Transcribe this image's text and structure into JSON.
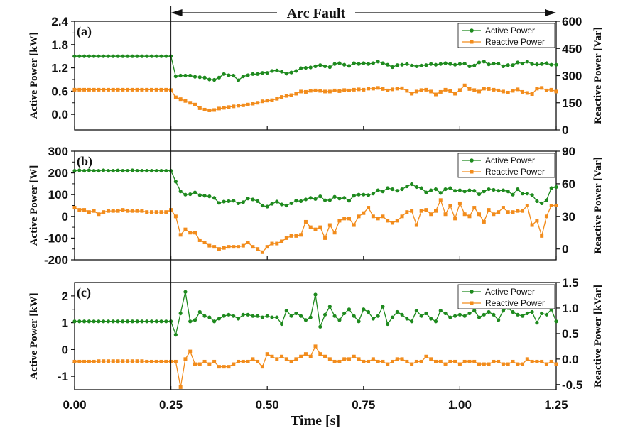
{
  "colors": {
    "active": "#1e8a1e",
    "reactive": "#f28c1c",
    "axis": "#111111"
  },
  "annotation": {
    "text": "Arc Fault",
    "fault_time": 0.25
  },
  "xlabel": "Time [s]",
  "x_ticks": [
    "0.00",
    "0.25",
    "0.50",
    "0.75",
    "1.00",
    "1.25"
  ],
  "chart_data": [
    {
      "type": "line",
      "panel_label": "(a)",
      "ylabel_left": "Active Power [kW]",
      "ylabel_right": "Reactive Power [Var]",
      "ylim_left": [
        -0.4,
        2.4
      ],
      "ylim_right": [
        0,
        600
      ],
      "yticks_left": [
        "2.4",
        "1.8",
        "1.2",
        "0.6",
        "0.0"
      ],
      "yticks_right": [
        "600",
        "450",
        "300",
        "150",
        "0"
      ],
      "xlim": [
        0,
        1.25
      ],
      "legend": [
        "Active Power",
        "Reactive Power"
      ],
      "x": [
        0.0,
        0.0125,
        0.025,
        0.0375,
        0.05,
        0.0625,
        0.075,
        0.0875,
        0.1,
        0.1125,
        0.125,
        0.1375,
        0.15,
        0.1625,
        0.175,
        0.1875,
        0.2,
        0.2125,
        0.225,
        0.2375,
        0.25,
        0.2625,
        0.275,
        0.2875,
        0.3,
        0.3125,
        0.325,
        0.3375,
        0.35,
        0.3625,
        0.375,
        0.3875,
        0.4,
        0.4125,
        0.425,
        0.4375,
        0.45,
        0.4625,
        0.475,
        0.4875,
        0.5,
        0.5125,
        0.525,
        0.5375,
        0.55,
        0.5625,
        0.575,
        0.5875,
        0.6,
        0.6125,
        0.625,
        0.6375,
        0.65,
        0.6625,
        0.675,
        0.6875,
        0.7,
        0.7125,
        0.725,
        0.7375,
        0.75,
        0.7625,
        0.775,
        0.7875,
        0.8,
        0.8125,
        0.825,
        0.8375,
        0.85,
        0.8625,
        0.875,
        0.8875,
        0.9,
        0.9125,
        0.925,
        0.9375,
        0.95,
        0.9625,
        0.975,
        0.9875,
        1.0,
        1.0125,
        1.025,
        1.0375,
        1.05,
        1.0625,
        1.075,
        1.0875,
        1.1,
        1.1125,
        1.125,
        1.1375,
        1.15,
        1.1625,
        1.175,
        1.1875,
        1.2,
        1.2125,
        1.225,
        1.2375,
        1.25
      ],
      "series": [
        {
          "name": "Active Power",
          "axis": "left",
          "marker": "circle",
          "values": [
            1.5,
            1.5,
            1.5,
            1.5,
            1.5,
            1.5,
            1.5,
            1.5,
            1.5,
            1.5,
            1.5,
            1.5,
            1.5,
            1.5,
            1.5,
            1.5,
            1.5,
            1.5,
            1.5,
            1.5,
            1.5,
            0.98,
            1.0,
            1.0,
            1.0,
            0.97,
            0.96,
            0.95,
            0.9,
            0.89,
            0.95,
            1.04,
            1.01,
            1.0,
            0.88,
            0.98,
            1.01,
            1.04,
            1.04,
            1.07,
            1.07,
            1.12,
            1.13,
            1.1,
            1.05,
            1.08,
            1.12,
            1.19,
            1.2,
            1.21,
            1.24,
            1.27,
            1.24,
            1.22,
            1.3,
            1.32,
            1.28,
            1.25,
            1.32,
            1.3,
            1.32,
            1.3,
            1.32,
            1.36,
            1.32,
            1.28,
            1.22,
            1.27,
            1.28,
            1.3,
            1.26,
            1.24,
            1.26,
            1.27,
            1.3,
            1.28,
            1.3,
            1.32,
            1.3,
            1.28,
            1.3,
            1.31,
            1.24,
            1.26,
            1.34,
            1.36,
            1.29,
            1.31,
            1.31,
            1.24,
            1.27,
            1.27,
            1.34,
            1.31,
            1.36,
            1.3,
            1.29,
            1.3,
            1.32,
            1.28,
            1.28
          ]
        },
        {
          "name": "Reactive Power",
          "axis": "right",
          "marker": "square",
          "values": [
            222,
            222,
            222,
            222,
            222,
            222,
            222,
            222,
            222,
            222,
            222,
            222,
            222,
            222,
            222,
            222,
            222,
            222,
            222,
            222,
            220,
            180,
            170,
            160,
            150,
            140,
            120,
            112,
            108,
            110,
            118,
            122,
            126,
            130,
            134,
            136,
            140,
            145,
            150,
            158,
            162,
            164,
            172,
            182,
            188,
            192,
            200,
            212,
            210,
            216,
            218,
            216,
            212,
            212,
            218,
            214,
            220,
            218,
            222,
            224,
            222,
            228,
            228,
            232,
            226,
            218,
            224,
            228,
            230,
            216,
            200,
            212,
            220,
            222,
            212,
            196,
            210,
            222,
            214,
            200,
            220,
            246,
            226,
            220,
            212,
            228,
            226,
            222,
            218,
            212,
            206,
            216,
            224,
            210,
            204,
            198,
            228,
            232,
            218,
            222,
            212
          ]
        }
      ]
    },
    {
      "type": "line",
      "panel_label": "(b)",
      "ylabel_left": "Active Power [W]",
      "ylabel_right": "Reactive Power [Var]",
      "ylim_left": [
        -200,
        300
      ],
      "ylim_right": [
        -10,
        90
      ],
      "yticks_left": [
        "300",
        "200",
        "100",
        "0",
        "-100",
        "-200"
      ],
      "yticks_right": [
        "90",
        "60",
        "30",
        "0"
      ],
      "xlim": [
        0,
        1.25
      ],
      "legend": [
        "Active Power",
        "Reactive Power"
      ],
      "x": [
        0.0,
        0.0125,
        0.025,
        0.0375,
        0.05,
        0.0625,
        0.075,
        0.0875,
        0.1,
        0.1125,
        0.125,
        0.1375,
        0.15,
        0.1625,
        0.175,
        0.1875,
        0.2,
        0.2125,
        0.225,
        0.2375,
        0.25,
        0.2625,
        0.275,
        0.2875,
        0.3,
        0.3125,
        0.325,
        0.3375,
        0.35,
        0.3625,
        0.375,
        0.3875,
        0.4,
        0.4125,
        0.425,
        0.4375,
        0.45,
        0.4625,
        0.475,
        0.4875,
        0.5,
        0.5125,
        0.525,
        0.5375,
        0.55,
        0.5625,
        0.575,
        0.5875,
        0.6,
        0.6125,
        0.625,
        0.6375,
        0.65,
        0.6625,
        0.675,
        0.6875,
        0.7,
        0.7125,
        0.725,
        0.7375,
        0.75,
        0.7625,
        0.775,
        0.7875,
        0.8,
        0.8125,
        0.825,
        0.8375,
        0.85,
        0.8625,
        0.875,
        0.8875,
        0.9,
        0.9125,
        0.925,
        0.9375,
        0.95,
        0.9625,
        0.975,
        0.9875,
        1.0,
        1.0125,
        1.025,
        1.0375,
        1.05,
        1.0625,
        1.075,
        1.0875,
        1.1,
        1.1125,
        1.125,
        1.1375,
        1.15,
        1.1625,
        1.175,
        1.1875,
        1.2,
        1.2125,
        1.225,
        1.2375,
        1.25
      ],
      "series": [
        {
          "name": "Active Power",
          "axis": "left",
          "marker": "circle",
          "values": [
            210,
            212,
            210,
            212,
            210,
            210,
            212,
            210,
            210,
            211,
            210,
            210,
            212,
            210,
            210,
            210,
            210,
            210,
            210,
            210,
            210,
            160,
            115,
            100,
            102,
            110,
            98,
            95,
            92,
            85,
            62,
            68,
            70,
            72,
            60,
            65,
            82,
            78,
            70,
            50,
            45,
            58,
            68,
            55,
            50,
            60,
            72,
            70,
            78,
            85,
            80,
            92,
            74,
            75,
            90,
            82,
            85,
            72,
            95,
            100,
            100,
            98,
            105,
            120,
            115,
            130,
            125,
            118,
            125,
            138,
            148,
            135,
            130,
            110,
            120,
            125,
            108,
            125,
            130,
            118,
            120,
            115,
            120,
            118,
            102,
            115,
            125,
            122,
            118,
            120,
            115,
            100,
            125,
            105,
            105,
            98,
            70,
            60,
            75,
            130,
            135
          ]
        },
        {
          "name": "Reactive Power",
          "axis": "right",
          "marker": "square",
          "values": [
            38,
            36,
            36,
            34,
            35,
            32,
            34,
            35,
            35,
            35,
            36,
            35,
            35,
            35,
            35,
            34,
            34,
            34,
            34,
            34,
            36,
            30,
            13,
            18,
            15,
            15,
            8,
            6,
            3,
            2,
            0,
            1,
            2,
            2,
            2,
            3,
            6,
            2,
            0,
            -3,
            2,
            5,
            5,
            7,
            10,
            12,
            12,
            13,
            25,
            20,
            18,
            20,
            10,
            22,
            15,
            26,
            28,
            28,
            22,
            30,
            33,
            38,
            30,
            28,
            30,
            26,
            24,
            26,
            30,
            34,
            35,
            22,
            35,
            36,
            32,
            35,
            45,
            32,
            40,
            28,
            42,
            32,
            30,
            38,
            32,
            25,
            36,
            32,
            34,
            38,
            34,
            34,
            35,
            35,
            40,
            22,
            26,
            12,
            30,
            40,
            40
          ]
        }
      ]
    },
    {
      "type": "line",
      "panel_label": "(c)",
      "ylabel_left": "Active Power [kW]",
      "ylabel_right": "Reactive Power [kVar]",
      "ylim_left": [
        -1.5,
        2.5
      ],
      "ylim_right": [
        -0.6,
        1.5
      ],
      "yticks_left": [
        "2",
        "1",
        "0",
        "-1"
      ],
      "yticks_right": [
        "1.5",
        "1.0",
        "0.5",
        "0.0",
        "-0.5"
      ],
      "xlim": [
        0,
        1.25
      ],
      "legend": [
        "Active Power",
        "Reactive Power"
      ],
      "x": [
        0.0,
        0.0125,
        0.025,
        0.0375,
        0.05,
        0.0625,
        0.075,
        0.0875,
        0.1,
        0.1125,
        0.125,
        0.1375,
        0.15,
        0.1625,
        0.175,
        0.1875,
        0.2,
        0.2125,
        0.225,
        0.2375,
        0.25,
        0.2625,
        0.275,
        0.2875,
        0.3,
        0.3125,
        0.325,
        0.3375,
        0.35,
        0.3625,
        0.375,
        0.3875,
        0.4,
        0.4125,
        0.425,
        0.4375,
        0.45,
        0.4625,
        0.475,
        0.4875,
        0.5,
        0.5125,
        0.525,
        0.5375,
        0.55,
        0.5625,
        0.575,
        0.5875,
        0.6,
        0.6125,
        0.625,
        0.6375,
        0.65,
        0.6625,
        0.675,
        0.6875,
        0.7,
        0.7125,
        0.725,
        0.7375,
        0.75,
        0.7625,
        0.775,
        0.7875,
        0.8,
        0.8125,
        0.825,
        0.8375,
        0.85,
        0.8625,
        0.875,
        0.8875,
        0.9,
        0.9125,
        0.925,
        0.9375,
        0.95,
        0.9625,
        0.975,
        0.9875,
        1.0,
        1.0125,
        1.025,
        1.0375,
        1.05,
        1.0625,
        1.075,
        1.0875,
        1.1,
        1.1125,
        1.125,
        1.1375,
        1.15,
        1.1625,
        1.175,
        1.1875,
        1.2,
        1.2125,
        1.225,
        1.2375,
        1.25
      ],
      "series": [
        {
          "name": "Active Power",
          "axis": "left",
          "marker": "circle",
          "values": [
            1.05,
            1.05,
            1.05,
            1.05,
            1.05,
            1.05,
            1.05,
            1.05,
            1.05,
            1.05,
            1.05,
            1.05,
            1.05,
            1.05,
            1.05,
            1.05,
            1.05,
            1.05,
            1.05,
            1.05,
            1.05,
            0.55,
            1.35,
            2.15,
            1.05,
            1.1,
            1.4,
            1.25,
            1.2,
            1.05,
            1.15,
            1.25,
            1.3,
            1.25,
            1.15,
            1.3,
            1.3,
            1.25,
            1.25,
            1.2,
            1.25,
            1.2,
            1.2,
            0.95,
            1.45,
            1.25,
            1.35,
            1.25,
            1.1,
            1.2,
            2.05,
            0.85,
            1.3,
            1.6,
            1.25,
            1.1,
            1.35,
            1.5,
            1.25,
            1.05,
            1.5,
            1.4,
            1.15,
            1.25,
            1.6,
            0.95,
            1.2,
            1.4,
            1.3,
            1.15,
            1.05,
            1.45,
            1.25,
            1.35,
            1.15,
            1.05,
            1.45,
            1.35,
            1.2,
            1.25,
            1.3,
            1.25,
            1.35,
            1.45,
            1.2,
            1.3,
            1.4,
            1.3,
            1.1,
            1.45,
            1.55,
            1.4,
            1.3,
            1.25,
            1.35,
            1.4,
            1.0,
            1.35,
            1.3,
            1.5,
            1.05
          ]
        },
        {
          "name": "Reactive Power",
          "axis": "right",
          "marker": "square",
          "values": [
            -0.05,
            -0.05,
            -0.05,
            -0.05,
            -0.05,
            -0.04,
            -0.04,
            -0.04,
            -0.04,
            -0.04,
            -0.04,
            -0.04,
            -0.04,
            -0.04,
            -0.04,
            -0.05,
            -0.05,
            -0.05,
            -0.05,
            -0.05,
            -0.05,
            -0.05,
            -0.55,
            0.0,
            0.15,
            -0.1,
            -0.1,
            -0.05,
            -0.1,
            -0.05,
            -0.15,
            -0.15,
            -0.15,
            -0.1,
            -0.05,
            -0.05,
            -0.05,
            0.0,
            -0.05,
            -0.15,
            0.1,
            0.05,
            0.0,
            0.05,
            0.0,
            -0.05,
            0.0,
            0.05,
            0.1,
            0.05,
            0.25,
            0.1,
            0.05,
            0.0,
            -0.05,
            -0.05,
            0.0,
            0.0,
            0.05,
            0.0,
            -0.05,
            -0.05,
            0.0,
            -0.05,
            -0.05,
            -0.1,
            -0.05,
            0.0,
            0.0,
            -0.05,
            -0.1,
            -0.05,
            -0.05,
            0.05,
            0.0,
            -0.05,
            -0.05,
            -0.1,
            -0.05,
            -0.05,
            -0.1,
            -0.05,
            -0.05,
            -0.05,
            -0.1,
            -0.1,
            -0.1,
            -0.05,
            -0.05,
            -0.1,
            -0.1,
            -0.05,
            -0.1,
            -0.1,
            0.0,
            -0.05,
            -0.05,
            -0.05,
            -0.1,
            -0.05,
            -0.1
          ]
        }
      ]
    }
  ]
}
